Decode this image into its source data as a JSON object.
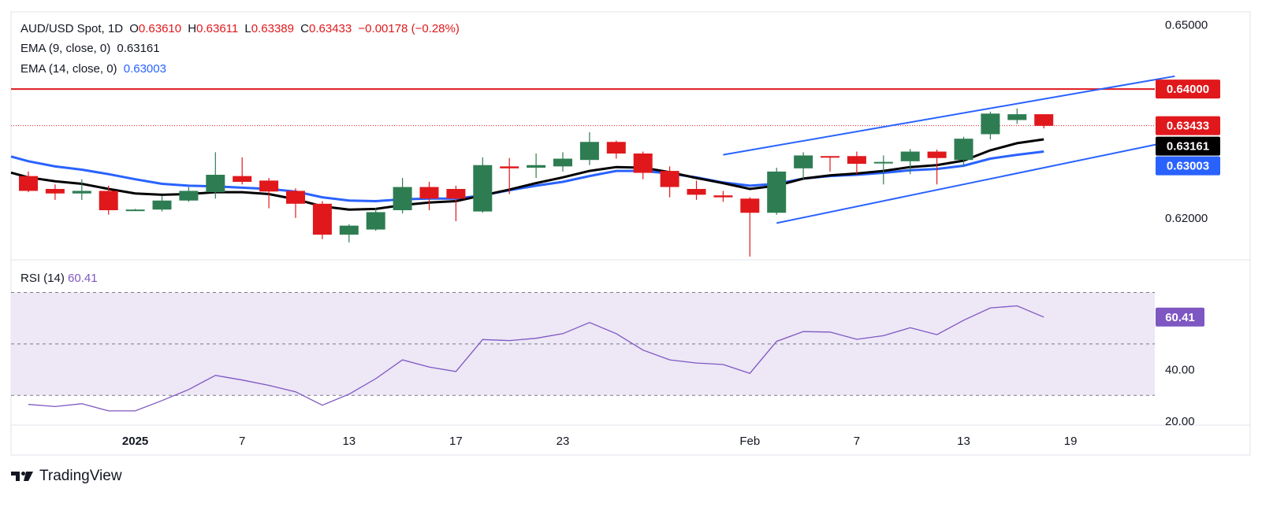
{
  "legend": {
    "symbol": "AUD/USD Spot, 1D",
    "o_label": "O",
    "o_value": "0.63610",
    "h_label": "H",
    "h_value": "0.63611",
    "l_label": "L",
    "l_value": "0.63389",
    "c_label": "C",
    "c_value": "0.63433",
    "change": "−0.00178 (−0.28%)",
    "ema9_label": "EMA (9, close, 0)",
    "ema9_value": "0.63161",
    "ema14_label": "EMA (14, close, 0)",
    "ema14_value": "0.63003"
  },
  "rsi_legend": {
    "label": "RSI (14)",
    "value": "60.41"
  },
  "brand": {
    "name": "TradingView"
  },
  "colors": {
    "up": "#2e7d52",
    "down": "#e0181c",
    "ema9": "#000000",
    "ema14": "#2962ff",
    "channel": "#2962ff",
    "resistance": "#e0181c",
    "rsi": "#7e57c2",
    "rsi_band": "#ede7f6"
  },
  "chart_data": [
    {
      "type": "candlestick",
      "title": "AUD/USD Spot, 1D",
      "x_tick_labels": [
        {
          "i": 4,
          "text": "2025"
        },
        {
          "i": 8,
          "text": "7"
        },
        {
          "i": 12,
          "text": "13"
        },
        {
          "i": 16,
          "text": "17"
        },
        {
          "i": 20,
          "text": "23"
        },
        {
          "i": 27,
          "text": "Feb"
        },
        {
          "i": 31,
          "text": "7"
        },
        {
          "i": 35,
          "text": "13"
        },
        {
          "i": 39,
          "text": "19"
        }
      ],
      "ylim": [
        0.6135,
        0.652
      ],
      "y_ticks": [
        "0.62000",
        "0.65000"
      ],
      "candles": [
        {
          "o": 0.6265,
          "h": 0.6272,
          "l": 0.624,
          "c": 0.6242
        },
        {
          "o": 0.6245,
          "h": 0.6252,
          "l": 0.6228,
          "c": 0.6238
        },
        {
          "o": 0.6238,
          "h": 0.626,
          "l": 0.6228,
          "c": 0.6242
        },
        {
          "o": 0.6242,
          "h": 0.625,
          "l": 0.6205,
          "c": 0.6212
        },
        {
          "o": 0.6212,
          "h": 0.6214,
          "l": 0.6212,
          "c": 0.6213
        },
        {
          "o": 0.6213,
          "h": 0.6234,
          "l": 0.621,
          "c": 0.6227
        },
        {
          "o": 0.6227,
          "h": 0.6248,
          "l": 0.6225,
          "c": 0.6242
        },
        {
          "o": 0.624,
          "h": 0.6302,
          "l": 0.623,
          "c": 0.6267
        },
        {
          "o": 0.6265,
          "h": 0.6294,
          "l": 0.6252,
          "c": 0.6256
        },
        {
          "o": 0.6258,
          "h": 0.6262,
          "l": 0.6215,
          "c": 0.6241
        },
        {
          "o": 0.6242,
          "h": 0.6246,
          "l": 0.62,
          "c": 0.6222
        },
        {
          "o": 0.6222,
          "h": 0.6226,
          "l": 0.6167,
          "c": 0.6174
        },
        {
          "o": 0.6174,
          "h": 0.619,
          "l": 0.6162,
          "c": 0.6188
        },
        {
          "o": 0.6182,
          "h": 0.6215,
          "l": 0.618,
          "c": 0.6209
        },
        {
          "o": 0.6212,
          "h": 0.6262,
          "l": 0.6207,
          "c": 0.6248
        },
        {
          "o": 0.6248,
          "h": 0.6256,
          "l": 0.6212,
          "c": 0.623
        },
        {
          "o": 0.6245,
          "h": 0.625,
          "l": 0.6195,
          "c": 0.623
        },
        {
          "o": 0.621,
          "h": 0.6294,
          "l": 0.6208,
          "c": 0.6282
        },
        {
          "o": 0.628,
          "h": 0.6293,
          "l": 0.6237,
          "c": 0.6277
        },
        {
          "o": 0.6278,
          "h": 0.63,
          "l": 0.6262,
          "c": 0.6282
        },
        {
          "o": 0.628,
          "h": 0.6302,
          "l": 0.6272,
          "c": 0.6292
        },
        {
          "o": 0.629,
          "h": 0.6333,
          "l": 0.6282,
          "c": 0.6318
        },
        {
          "o": 0.6318,
          "h": 0.632,
          "l": 0.6292,
          "c": 0.63
        },
        {
          "o": 0.63,
          "h": 0.6303,
          "l": 0.626,
          "c": 0.627
        },
        {
          "o": 0.6273,
          "h": 0.628,
          "l": 0.6232,
          "c": 0.6248
        },
        {
          "o": 0.6245,
          "h": 0.6258,
          "l": 0.6228,
          "c": 0.6236
        },
        {
          "o": 0.6235,
          "h": 0.6242,
          "l": 0.6225,
          "c": 0.6232
        },
        {
          "o": 0.623,
          "h": 0.6232,
          "l": 0.614,
          "c": 0.6208
        },
        {
          "o": 0.6208,
          "h": 0.6278,
          "l": 0.6205,
          "c": 0.6272
        },
        {
          "o": 0.6277,
          "h": 0.6302,
          "l": 0.626,
          "c": 0.6297
        },
        {
          "o": 0.6296,
          "h": 0.6296,
          "l": 0.6272,
          "c": 0.6295
        },
        {
          "o": 0.6296,
          "h": 0.6303,
          "l": 0.6268,
          "c": 0.6284
        },
        {
          "o": 0.6285,
          "h": 0.6297,
          "l": 0.6252,
          "c": 0.6287
        },
        {
          "o": 0.6288,
          "h": 0.6307,
          "l": 0.6268,
          "c": 0.6303
        },
        {
          "o": 0.6303,
          "h": 0.6306,
          "l": 0.6252,
          "c": 0.6293
        },
        {
          "o": 0.629,
          "h": 0.6326,
          "l": 0.6279,
          "c": 0.6323
        },
        {
          "o": 0.633,
          "h": 0.6365,
          "l": 0.6322,
          "c": 0.6362
        },
        {
          "o": 0.6352,
          "h": 0.637,
          "l": 0.6346,
          "c": 0.6361
        },
        {
          "o": 0.6361,
          "h": 0.6361,
          "l": 0.6339,
          "c": 0.6343
        }
      ],
      "ema9": [
        0.6263,
        0.6257,
        0.6253,
        0.6245,
        0.6238,
        0.6236,
        0.6237,
        0.624,
        0.624,
        0.6237,
        0.6229,
        0.6218,
        0.6213,
        0.6214,
        0.622,
        0.6224,
        0.6226,
        0.6235,
        0.6244,
        0.6254,
        0.6263,
        0.6273,
        0.6279,
        0.6278,
        0.6271,
        0.6262,
        0.6254,
        0.6245,
        0.625,
        0.6261,
        0.6266,
        0.6269,
        0.6273,
        0.6279,
        0.6282,
        0.6289,
        0.6305,
        0.6316,
        0.6322
      ],
      "ema14": [
        0.6288,
        0.628,
        0.6275,
        0.6268,
        0.626,
        0.6253,
        0.625,
        0.6249,
        0.6247,
        0.6245,
        0.6241,
        0.6232,
        0.6227,
        0.6226,
        0.6229,
        0.623,
        0.623,
        0.6235,
        0.6243,
        0.625,
        0.6256,
        0.6265,
        0.6273,
        0.6273,
        0.6269,
        0.6263,
        0.6255,
        0.625,
        0.6253,
        0.6261,
        0.6265,
        0.6267,
        0.627,
        0.6274,
        0.6276,
        0.6281,
        0.6292,
        0.6298,
        0.6303
      ],
      "resistance": {
        "value": 0.64,
        "label": "0.64000"
      },
      "last_price": {
        "value": 0.63433,
        "label": "0.63433"
      },
      "ema9_badge": {
        "value": 0.63161,
        "label": "0.63161"
      },
      "ema14_badge": {
        "value": 0.63003,
        "label": "0.63003"
      },
      "channel_upper": [
        {
          "i": 26.0,
          "y": 0.6298
        },
        {
          "i": 42.9,
          "y": 0.642
        }
      ],
      "channel_lower": [
        {
          "i": 28.0,
          "y": 0.6192
        },
        {
          "i": 42.9,
          "y": 0.632
        }
      ]
    },
    {
      "type": "line",
      "title": "RSI (14)",
      "ylim": [
        20,
        79
      ],
      "y_ticks": [
        20,
        40
      ],
      "y_tick_labels": [
        "20.00",
        "40.00"
      ],
      "band": [
        30,
        70
      ],
      "midline": 50,
      "values": [
        26.5,
        25.7,
        26.8,
        24.0,
        24.0,
        28.0,
        32.3,
        37.8,
        36.0,
        33.9,
        31.4,
        26.2,
        30.5,
        36.5,
        43.8,
        41.0,
        39.3,
        51.7,
        51.3,
        52.2,
        54.0,
        58.3,
        54.0,
        47.6,
        43.8,
        42.6,
        42.0,
        38.6,
        51.0,
        54.8,
        54.6,
        51.8,
        53.2,
        56.3,
        53.6,
        59.2,
        64.0,
        64.8,
        60.41
      ],
      "last_label": "60.41"
    }
  ]
}
